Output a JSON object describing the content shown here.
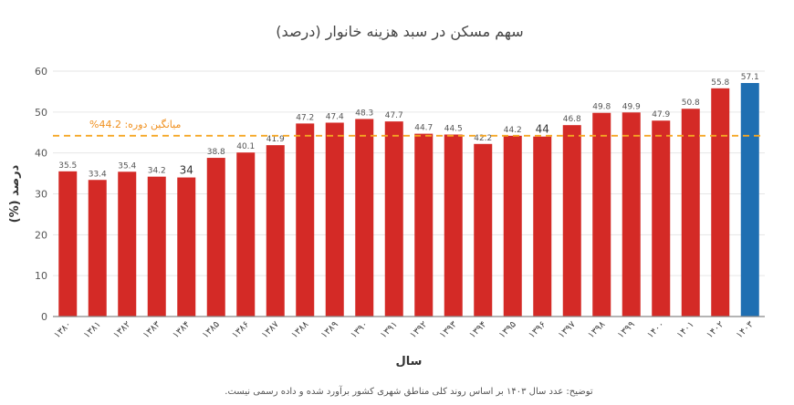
{
  "chart_data": {
    "type": "bar",
    "title": "سهم مسکن در سبد هزینه خانوار (درصد)",
    "xlabel": "سال",
    "ylabel": "(%) درصد",
    "ylim": [
      0,
      60
    ],
    "yticks": [
      0,
      10,
      20,
      30,
      40,
      50,
      60
    ],
    "grid": true,
    "categories": [
      "۱۳۸۰",
      "۱۳۸۱",
      "۱۳۸۲",
      "۱۳۸۳",
      "۱۳۸۴",
      "۱۳۸۵",
      "۱۳۸۶",
      "۱۳۸۷",
      "۱۳۸۸",
      "۱۳۸۹",
      "۱۳۹۰",
      "۱۳۹۱",
      "۱۳۹۲",
      "۱۳۹۳",
      "۱۳۹۴",
      "۱۳۹۵",
      "۱۳۹۶",
      "۱۳۹۷",
      "۱۳۹۸",
      "۱۳۹۹",
      "۱۴۰۰",
      "۱۴۰۱",
      "۱۴۰۲",
      "۱۴۰۳"
    ],
    "values": [
      35.5,
      33.4,
      35.4,
      34.2,
      34,
      38.8,
      40.1,
      41.9,
      47.2,
      47.4,
      48.3,
      47.7,
      44.7,
      44.5,
      42.2,
      44.2,
      44,
      46.8,
      49.8,
      49.9,
      47.9,
      50.8,
      55.8,
      57.1
    ],
    "value_labels": [
      "35.5",
      "33.4",
      "35.4",
      "34.2",
      "34",
      "38.8",
      "40.1",
      "41.9",
      "47.2",
      "47.4",
      "48.3",
      "47.7",
      "44.7",
      "44.5",
      "42.2",
      "44.2",
      "44",
      "46.8",
      "49.8",
      "49.9",
      "47.9",
      "50.8",
      "55.8",
      "57.1"
    ],
    "highlight_index": 23,
    "average": {
      "value": 44.2,
      "label": "%میانگین دوره: 44.2"
    },
    "note": "توضیح: عدد سال ۱۴۰۳ بر اساس روند کلی مناطق شهری کشور برآورد شده و داده رسمی نیست."
  },
  "colors": {
    "bar": "#d42a26",
    "highlight": "#1f6fb2",
    "average_line": "#f5a623",
    "grid": "#e6e6e6",
    "axis": "#888888"
  }
}
